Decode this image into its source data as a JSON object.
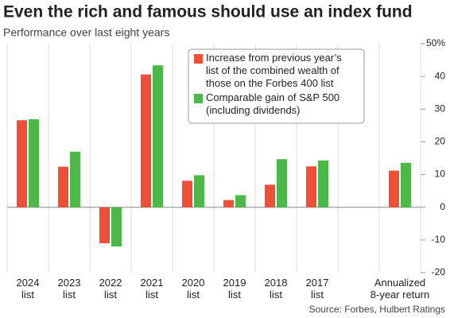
{
  "chart_data": {
    "type": "bar",
    "title": "Even the rich and famous should use an index fund",
    "subtitle": "Performance over last eight years",
    "source": "Source: Forbes, Hulbert Ratings",
    "categories": [
      "2024\nlist",
      "2023\nlist",
      "2022\nlist",
      "2021\nlist",
      "2020\nlist",
      "2019\nlist",
      "2018\nlist",
      "2017\nlist",
      null,
      "Annualized\n8-year return"
    ],
    "series": [
      {
        "name": "Increase from previous year’s\nlist of the combined wealth of\nthose on the Forbes 400 list",
        "color": "#f04e37",
        "values": [
          26.6,
          12.4,
          -11.0,
          40.6,
          8.1,
          2.2,
          6.9,
          12.5,
          null,
          11.2
        ]
      },
      {
        "name": "Comparable gain of S&P 500\n(including dividends)",
        "color": "#4cb848",
        "values": [
          26.9,
          17.0,
          -12.0,
          43.4,
          9.8,
          3.7,
          14.7,
          14.3,
          null,
          13.6
        ]
      }
    ],
    "ylim": [
      -20,
      50
    ],
    "yticks": [
      -20,
      -10,
      0,
      10,
      20,
      30,
      40,
      {
        "value": 50,
        "label": "50%"
      }
    ],
    "legend": "top-right"
  }
}
